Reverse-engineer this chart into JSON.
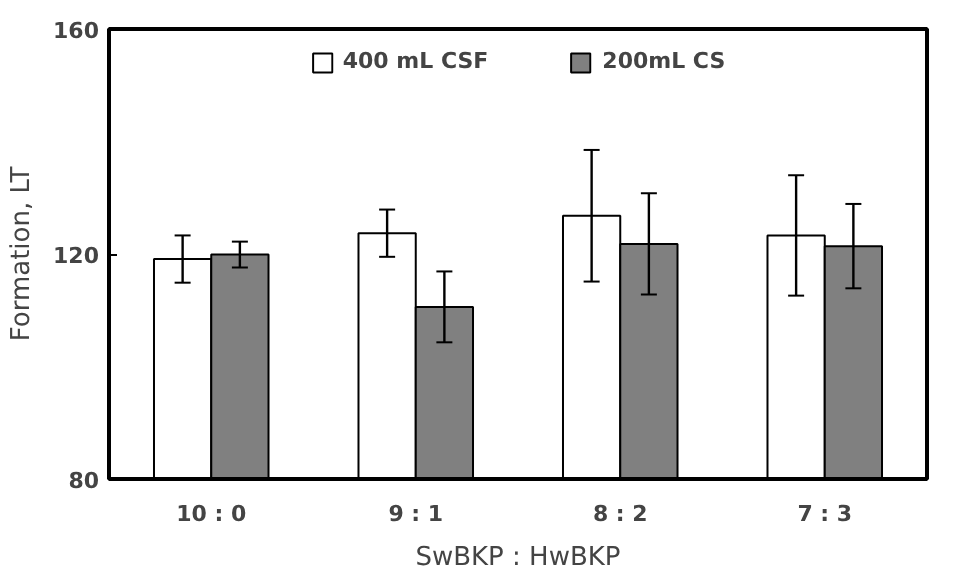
{
  "chart_data": {
    "type": "bar",
    "xlabel": "SwBKP : HwBKP",
    "ylabel": "Formation, LT",
    "categories": [
      "10 : 0",
      "9 : 1",
      "8 : 2",
      "7 : 3"
    ],
    "series": [
      {
        "name": "400 mL CSF",
        "color": "#ffffff",
        "values": [
          119.1,
          123.7,
          126.8,
          123.3
        ],
        "errors": [
          4.2,
          4.2,
          11.7,
          10.7
        ]
      },
      {
        "name": "200mL CS",
        "color": "#808080",
        "values": [
          119.9,
          110.6,
          121.8,
          121.4
        ],
        "errors": [
          2.3,
          6.3,
          9,
          7.5
        ]
      }
    ],
    "ylim": [
      80,
      160
    ],
    "yticks": [
      80,
      120,
      160
    ],
    "grid": false,
    "legend": "top"
  }
}
